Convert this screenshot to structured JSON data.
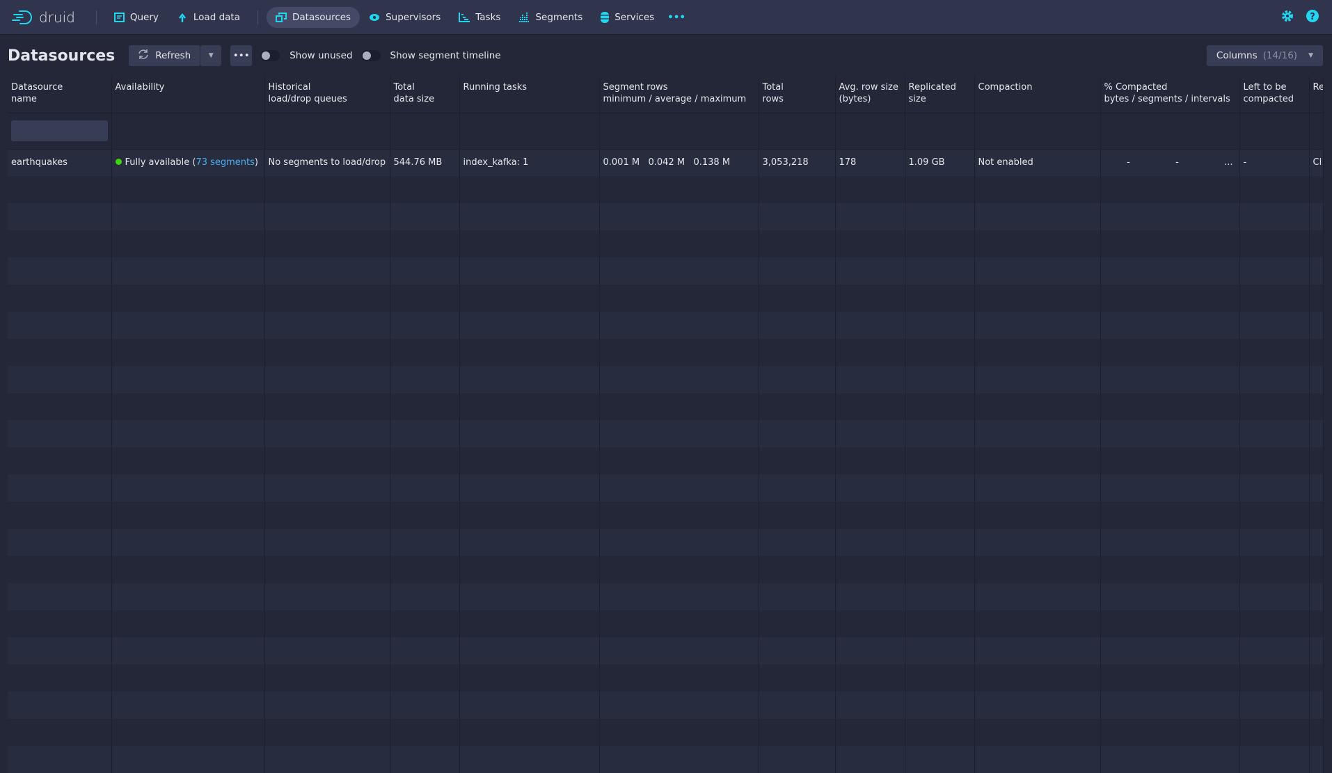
{
  "nav": {
    "logo": "druid",
    "items": [
      {
        "label": "Query",
        "icon": "query-icon"
      },
      {
        "label": "Load data",
        "icon": "upload-icon"
      },
      {
        "label": "Datasources",
        "icon": "datasources-icon",
        "active": true
      },
      {
        "label": "Supervisors",
        "icon": "eye-icon"
      },
      {
        "label": "Tasks",
        "icon": "tasks-icon"
      },
      {
        "label": "Segments",
        "icon": "segments-icon"
      },
      {
        "label": "Services",
        "icon": "database-icon"
      }
    ],
    "more": "•••"
  },
  "toolbar": {
    "title": "Datasources",
    "refresh": "Refresh",
    "more": "•••",
    "show_unused": "Show unused",
    "show_timeline": "Show segment timeline",
    "columns_label": "Columns",
    "columns_count": "(14/16)"
  },
  "table": {
    "headers": [
      [
        "Datasource",
        "name"
      ],
      [
        "Availability",
        ""
      ],
      [
        "Historical",
        "load/drop queues"
      ],
      [
        "Total",
        "data size"
      ],
      [
        "Running tasks",
        ""
      ],
      [
        "Segment rows",
        "minimum / average / maximum"
      ],
      [
        "Total",
        "rows"
      ],
      [
        "Avg. row size",
        "(bytes)"
      ],
      [
        "Replicated",
        "size"
      ],
      [
        "Compaction",
        ""
      ],
      [
        "% Compacted",
        "bytes / segments / intervals"
      ],
      [
        "Left to be",
        "compacted"
      ],
      [
        "Re",
        ""
      ]
    ],
    "rows": [
      {
        "name": "earthquakes",
        "availability": "Fully available (",
        "segments_link": "73 segments",
        "availability_end": ")",
        "queues": "No segments to load/drop",
        "data_size": "544.76 MB",
        "running_tasks": "index_kafka: 1",
        "seg_min": "0.001 M",
        "seg_avg": "0.042 M",
        "seg_max": "0.138 M",
        "total_rows": "3,053,218",
        "avg_row_size": "178",
        "replicated_size": "1.09 GB",
        "compaction": "Not enabled",
        "pct_bytes": "-",
        "pct_segments": "-",
        "pct_intervals": "...",
        "left": "-",
        "retention": "Cl"
      }
    ]
  },
  "colors": {
    "accent": "#21d6ee",
    "available": "#3fd10f",
    "link": "#48aff0"
  }
}
